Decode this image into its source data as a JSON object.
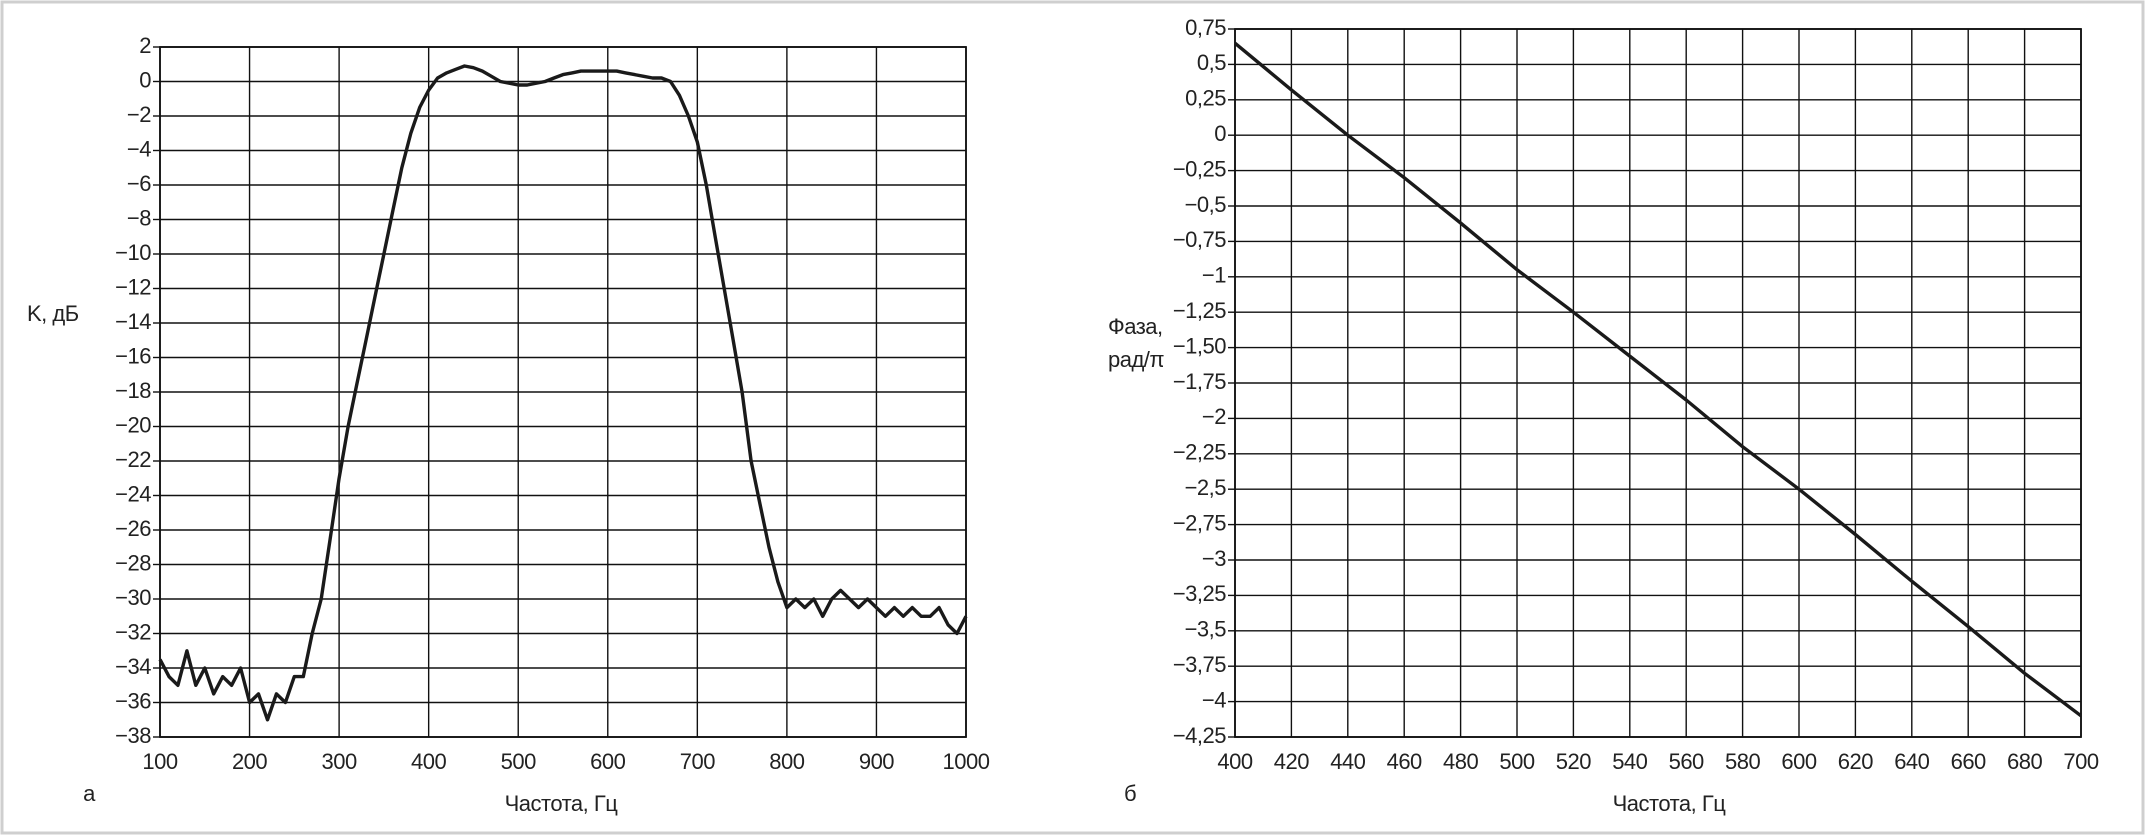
{
  "chart_data": [
    {
      "type": "line",
      "ylabel": "K, дБ",
      "xlabel": "Частота, Гц",
      "panel_label": "а",
      "color": "#1a1a1a",
      "grid": true,
      "x": [
        100,
        110,
        120,
        130,
        140,
        150,
        160,
        170,
        180,
        190,
        200,
        210,
        220,
        230,
        240,
        250,
        260,
        270,
        280,
        290,
        300,
        310,
        320,
        330,
        340,
        350,
        360,
        370,
        380,
        390,
        400,
        410,
        420,
        430,
        440,
        450,
        460,
        470,
        480,
        490,
        500,
        510,
        520,
        530,
        540,
        550,
        560,
        570,
        580,
        590,
        600,
        610,
        620,
        630,
        640,
        650,
        660,
        670,
        680,
        690,
        700,
        710,
        720,
        730,
        740,
        750,
        760,
        770,
        780,
        790,
        800,
        810,
        820,
        830,
        840,
        850,
        860,
        870,
        880,
        890,
        900,
        910,
        920,
        930,
        940,
        950,
        960,
        970,
        980,
        990,
        1000
      ],
      "values": [
        -33.5,
        -34.5,
        -35,
        -33,
        -35,
        -34,
        -35.5,
        -34.5,
        -35,
        -34,
        -36,
        -35.5,
        -37,
        -35.5,
        -36,
        -34.5,
        -34.5,
        -32,
        -30,
        -26.5,
        -23,
        -20,
        -17.5,
        -15,
        -12.5,
        -10,
        -7.5,
        -5,
        -3,
        -1.5,
        -0.5,
        0.2,
        0.5,
        0.7,
        0.9,
        0.8,
        0.6,
        0.3,
        0,
        -0.1,
        -0.2,
        -0.2,
        -0.1,
        0,
        0.2,
        0.4,
        0.5,
        0.6,
        0.6,
        0.6,
        0.6,
        0.6,
        0.5,
        0.4,
        0.3,
        0.2,
        0.2,
        0,
        -0.8,
        -2,
        -3.5,
        -6,
        -9,
        -12,
        -15,
        -18,
        -22,
        -24.5,
        -27,
        -29,
        -30.5,
        -30,
        -30.5,
        -30,
        -31,
        -30,
        -29.5,
        -30,
        -30.5,
        -30,
        -30.5,
        -31,
        -30.5,
        -31,
        -30.5,
        -31,
        -31,
        -30.5,
        -31.5,
        -32,
        -31
      ],
      "xlim": [
        100,
        1000
      ],
      "xticks": [
        100,
        200,
        300,
        400,
        500,
        600,
        700,
        800,
        900,
        1000
      ],
      "ylim": [
        -38,
        2
      ],
      "yticks": [
        2,
        0,
        {
          "value": -2,
          "label": "−2"
        },
        {
          "value": -4,
          "label": "−4"
        },
        {
          "value": -6,
          "label": "−6"
        },
        {
          "value": -8,
          "label": "−8"
        },
        {
          "value": -10,
          "label": "−10"
        },
        {
          "value": -12,
          "label": "−12"
        },
        {
          "value": -14,
          "label": "−14"
        },
        {
          "value": -16,
          "label": "−16"
        },
        {
          "value": -18,
          "label": "−18"
        },
        {
          "value": -20,
          "label": "−20"
        },
        {
          "value": -22,
          "label": "−22"
        },
        {
          "value": -24,
          "label": "−24"
        },
        {
          "value": -26,
          "label": "−26"
        },
        {
          "value": -28,
          "label": "−28"
        },
        {
          "value": -30,
          "label": "−30"
        },
        {
          "value": -32,
          "label": "−32"
        },
        {
          "value": -34,
          "label": "−34"
        },
        {
          "value": -36,
          "label": "−36"
        },
        {
          "value": -38,
          "label": "−38"
        }
      ]
    },
    {
      "type": "line",
      "ylabel_lines": [
        "Фаза,",
        "рад/π"
      ],
      "xlabel": "Частота, Гц",
      "panel_label": "б",
      "color": "#1a1a1a",
      "grid": true,
      "x": [
        400,
        420,
        440,
        460,
        480,
        500,
        520,
        540,
        560,
        580,
        600,
        620,
        640,
        660,
        680,
        700
      ],
      "values": [
        0.65,
        0.32,
        0,
        -0.3,
        -0.62,
        -0.95,
        -1.25,
        -1.56,
        -1.87,
        -2.2,
        -2.5,
        -2.82,
        -3.15,
        -3.47,
        -3.8,
        -4.1
      ],
      "xlim": [
        400,
        700
      ],
      "xticks": [
        400,
        420,
        440,
        460,
        480,
        500,
        520,
        540,
        560,
        580,
        600,
        620,
        640,
        660,
        680,
        700
      ],
      "ylim": [
        -4.25,
        0.75
      ],
      "yticks": [
        {
          "value": 0.75,
          "label": "0,75"
        },
        {
          "value": 0.5,
          "label": "0,5"
        },
        {
          "value": 0.25,
          "label": "0,25"
        },
        0,
        {
          "value": -0.25,
          "label": "−0,25"
        },
        {
          "value": -0.5,
          "label": "−0,5"
        },
        {
          "value": -0.75,
          "label": "−0,75"
        },
        {
          "value": -1,
          "label": "−1"
        },
        {
          "value": -1.25,
          "label": "−1,25"
        },
        {
          "value": -1.5,
          "label": "−1,50"
        },
        {
          "value": -1.75,
          "label": "−1,75"
        },
        {
          "value": -2,
          "label": "−2"
        },
        {
          "value": -2.25,
          "label": "−2,25"
        },
        {
          "value": -2.5,
          "label": "−2,5"
        },
        {
          "value": -2.75,
          "label": "−2,75"
        },
        {
          "value": -3,
          "label": "−3"
        },
        {
          "value": -3.25,
          "label": "−3,25"
        },
        {
          "value": -3.5,
          "label": "−3,5"
        },
        {
          "value": -3.75,
          "label": "−3,75"
        },
        {
          "value": -4,
          "label": "−4"
        },
        {
          "value": -4.25,
          "label": "−4,25"
        }
      ]
    }
  ]
}
